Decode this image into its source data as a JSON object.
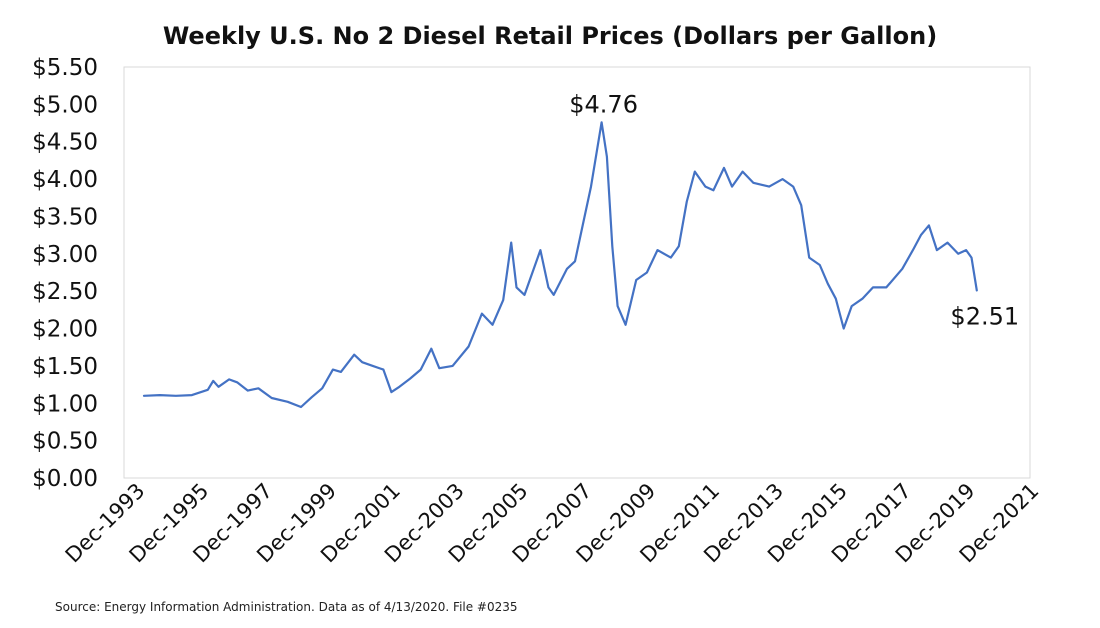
{
  "chart_data": {
    "type": "line",
    "title": "Weekly U.S. No 2 Diesel Retail Prices  (Dollars per Gallon)",
    "xlabel": "",
    "ylabel": "",
    "source": "Source: Energy Information Administration. Data as of 4/13/2020. File #0235",
    "xlim": [
      "1993-12",
      "2021-12"
    ],
    "ylim": [
      0,
      5.5
    ],
    "y_ticks": [
      "$0.00",
      "$0.50",
      "$1.00",
      "$1.50",
      "$2.00",
      "$2.50",
      "$3.00",
      "$3.50",
      "$4.00",
      "$4.50",
      "$5.00",
      "$5.50"
    ],
    "x_ticks": [
      "Dec-1993",
      "Dec-1995",
      "Dec-1997",
      "Dec-1999",
      "Dec-2001",
      "Dec-2003",
      "Dec-2005",
      "Dec-2007",
      "Dec-2009",
      "Dec-2011",
      "Dec-2013",
      "Dec-2015",
      "Dec-2017",
      "Dec-2019",
      "Dec-2021"
    ],
    "grid": false,
    "legend": "none",
    "line_color": "#4472C4",
    "annotations": [
      {
        "text": "$4.76",
        "x": "2008-07",
        "y": 4.76
      },
      {
        "text": "$2.51",
        "x": "2020-04",
        "y": 2.51
      }
    ],
    "series": [
      {
        "points": [
          [
            "1994-03",
            1.1
          ],
          [
            "1994-09",
            1.11
          ],
          [
            "1995-03",
            1.1
          ],
          [
            "1995-09",
            1.11
          ],
          [
            "1996-03",
            1.18
          ],
          [
            "1996-05",
            1.3
          ],
          [
            "1996-07",
            1.22
          ],
          [
            "1996-11",
            1.32
          ],
          [
            "1997-02",
            1.28
          ],
          [
            "1997-06",
            1.17
          ],
          [
            "1997-10",
            1.2
          ],
          [
            "1998-03",
            1.07
          ],
          [
            "1998-09",
            1.02
          ],
          [
            "1999-02",
            0.95
          ],
          [
            "1999-06",
            1.08
          ],
          [
            "1999-10",
            1.2
          ],
          [
            "2000-02",
            1.45
          ],
          [
            "2000-05",
            1.42
          ],
          [
            "2000-10",
            1.65
          ],
          [
            "2001-01",
            1.55
          ],
          [
            "2001-05",
            1.5
          ],
          [
            "2001-09",
            1.45
          ],
          [
            "2001-12",
            1.15
          ],
          [
            "2002-03",
            1.22
          ],
          [
            "2002-07",
            1.33
          ],
          [
            "2002-11",
            1.45
          ],
          [
            "2003-03",
            1.73
          ],
          [
            "2003-06",
            1.47
          ],
          [
            "2003-11",
            1.5
          ],
          [
            "2004-05",
            1.76
          ],
          [
            "2004-10",
            2.2
          ],
          [
            "2005-02",
            2.05
          ],
          [
            "2005-06",
            2.38
          ],
          [
            "2005-09",
            3.15
          ],
          [
            "2005-11",
            2.55
          ],
          [
            "2006-02",
            2.45
          ],
          [
            "2006-08",
            3.05
          ],
          [
            "2006-11",
            2.55
          ],
          [
            "2007-01",
            2.45
          ],
          [
            "2007-06",
            2.8
          ],
          [
            "2007-09",
            2.9
          ],
          [
            "2007-12",
            3.4
          ],
          [
            "2008-03",
            3.9
          ],
          [
            "2008-07",
            4.76
          ],
          [
            "2008-09",
            4.3
          ],
          [
            "2008-11",
            3.1
          ],
          [
            "2009-01",
            2.3
          ],
          [
            "2009-04",
            2.05
          ],
          [
            "2009-08",
            2.65
          ],
          [
            "2009-12",
            2.75
          ],
          [
            "2010-04",
            3.05
          ],
          [
            "2010-09",
            2.95
          ],
          [
            "2010-12",
            3.1
          ],
          [
            "2011-03",
            3.7
          ],
          [
            "2011-06",
            4.1
          ],
          [
            "2011-10",
            3.9
          ],
          [
            "2012-01",
            3.85
          ],
          [
            "2012-05",
            4.15
          ],
          [
            "2012-08",
            3.9
          ],
          [
            "2012-12",
            4.1
          ],
          [
            "2013-04",
            3.95
          ],
          [
            "2013-10",
            3.9
          ],
          [
            "2014-03",
            4.0
          ],
          [
            "2014-07",
            3.9
          ],
          [
            "2014-10",
            3.65
          ],
          [
            "2015-01",
            2.95
          ],
          [
            "2015-05",
            2.85
          ],
          [
            "2015-08",
            2.6
          ],
          [
            "2015-11",
            2.4
          ],
          [
            "2016-02",
            2.0
          ],
          [
            "2016-05",
            2.3
          ],
          [
            "2016-09",
            2.4
          ],
          [
            "2017-01",
            2.55
          ],
          [
            "2017-06",
            2.55
          ],
          [
            "2017-12",
            2.8
          ],
          [
            "2018-04",
            3.05
          ],
          [
            "2018-07",
            3.25
          ],
          [
            "2018-10",
            3.38
          ],
          [
            "2019-01",
            3.05
          ],
          [
            "2019-05",
            3.15
          ],
          [
            "2019-09",
            3.0
          ],
          [
            "2019-12",
            3.05
          ],
          [
            "2020-02",
            2.95
          ],
          [
            "2020-04",
            2.51
          ]
        ]
      }
    ]
  }
}
